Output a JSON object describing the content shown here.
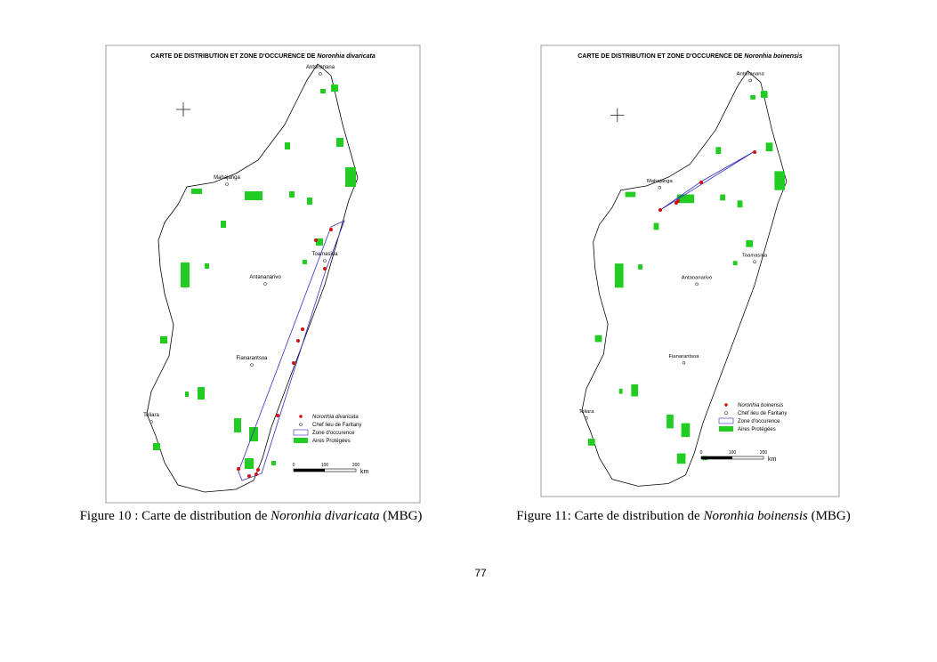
{
  "figures": [
    {
      "map": {
        "title": "CARTE DE DISTRIBUTION ET ZONE D'OCCURENCE DE",
        "species": "Noronhia divaricata",
        "cities": [
          "Antsiranana",
          "Mahajanga",
          "Toamasina",
          "Antananarivo",
          "Fianarantsoa",
          "Toliara"
        ],
        "legend": [
          "Noronhia divaricata",
          "Chef lieu de Faritany",
          "Zone d'occurence",
          "Aires Protégées"
        ],
        "scale": [
          0,
          100,
          200
        ],
        "scale_unit": "km"
      },
      "caption": {
        "label": "Figure 10 :",
        "text": "Carte de distribution de",
        "species": "Noronhia divaricata",
        "source": "(MBG)"
      }
    },
    {
      "map": {
        "title": "CARTE DE DISTRIBUTION ET ZONE D'OCCURENCE DE",
        "species": "Noronhia boinensis",
        "cities": [
          "Antsiranana",
          "Mahajanga",
          "Toamasina",
          "Antananarivo",
          "Fianarantsoa",
          "Toliara"
        ],
        "legend": [
          "Noronhia boinensis",
          "Chef lieu de Faritany",
          "Zone d'occurence",
          "Aires Protégées"
        ],
        "scale": [
          0,
          100,
          200
        ],
        "scale_unit": "km"
      },
      "caption": {
        "label": "Figure 11:",
        "text": "Carte de distribution de",
        "species": "Noronhia boinensis",
        "source": "(MBG)"
      }
    }
  ],
  "page_number": "77"
}
